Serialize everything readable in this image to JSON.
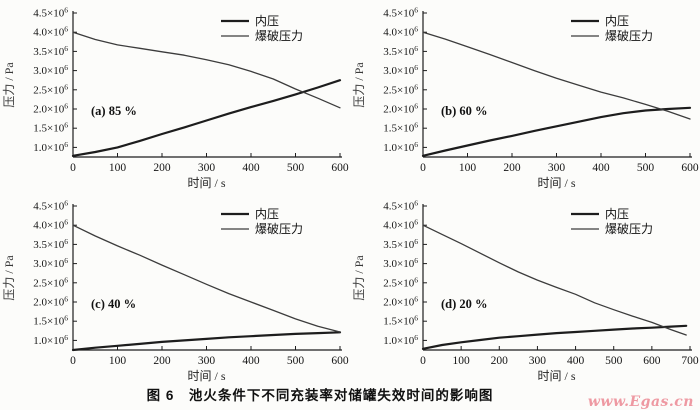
{
  "figure": {
    "caption": "图 6　池火条件下不同充装率对储罐失效时间的影响图",
    "watermark": "www.Egas.cn",
    "background": "#fcfcfa",
    "line_color": "#1d1d1d",
    "burst_line_color": "#3c3c3c",
    "watermark_color": "#ee99a2"
  },
  "chart_data": [
    {
      "type": "line",
      "panel_label": "(a) 85 %",
      "xlabel": "时间 / s",
      "ylabel": "压力 / Pa",
      "xlim": [
        0,
        600
      ],
      "ylim": [
        750000,
        4500000
      ],
      "x_ticks": [
        0,
        100,
        200,
        300,
        400,
        500,
        600
      ],
      "y_ticks": [
        1000000,
        1500000,
        2000000,
        2500000,
        3000000,
        3500000,
        4000000,
        4500000
      ],
      "grid": false,
      "legend_position": "top-right-inside",
      "series": [
        {
          "name": "内压",
          "stroke_width": 2.2,
          "x": [
            0,
            50,
            100,
            150,
            200,
            250,
            300,
            350,
            400,
            450,
            500,
            550,
            600
          ],
          "y": [
            780000,
            880000,
            1000000,
            1170000,
            1350000,
            1520000,
            1700000,
            1880000,
            2050000,
            2210000,
            2380000,
            2560000,
            2750000
          ]
        },
        {
          "name": "爆破压力",
          "stroke_width": 1.3,
          "x": [
            0,
            50,
            100,
            150,
            200,
            250,
            300,
            350,
            400,
            450,
            500,
            550,
            600
          ],
          "y": [
            4000000,
            3810000,
            3670000,
            3580000,
            3490000,
            3400000,
            3280000,
            3150000,
            2980000,
            2780000,
            2520000,
            2280000,
            2030000
          ]
        }
      ]
    },
    {
      "type": "line",
      "panel_label": "(b) 60 %",
      "xlabel": "时间 / s",
      "ylabel": "压力 / Pa",
      "xlim": [
        0,
        600
      ],
      "ylim": [
        750000,
        4500000
      ],
      "x_ticks": [
        0,
        100,
        200,
        300,
        400,
        500,
        600
      ],
      "y_ticks": [
        1000000,
        1500000,
        2000000,
        2500000,
        3000000,
        3500000,
        4000000,
        4500000
      ],
      "grid": false,
      "legend_position": "top-right-inside",
      "series": [
        {
          "name": "内压",
          "stroke_width": 2.2,
          "x": [
            0,
            50,
            100,
            150,
            200,
            250,
            300,
            350,
            400,
            450,
            500,
            550,
            600
          ],
          "y": [
            780000,
            920000,
            1050000,
            1180000,
            1300000,
            1430000,
            1550000,
            1670000,
            1790000,
            1890000,
            1960000,
            2000000,
            2030000
          ]
        },
        {
          "name": "爆破压力",
          "stroke_width": 1.3,
          "x": [
            0,
            50,
            100,
            150,
            200,
            250,
            300,
            350,
            400,
            450,
            500,
            550,
            600
          ],
          "y": [
            4000000,
            3820000,
            3620000,
            3420000,
            3210000,
            3000000,
            2800000,
            2620000,
            2440000,
            2290000,
            2120000,
            1940000,
            1740000
          ]
        }
      ]
    },
    {
      "type": "line",
      "panel_label": "(c) 40 %",
      "xlabel": "时间 / s",
      "ylabel": "压力 / Pa",
      "xlim": [
        0,
        600
      ],
      "ylim": [
        750000,
        4500000
      ],
      "x_ticks": [
        0,
        100,
        200,
        300,
        400,
        500,
        600
      ],
      "y_ticks": [
        1000000,
        1500000,
        2000000,
        2500000,
        3000000,
        3500000,
        4000000,
        4500000
      ],
      "grid": false,
      "legend_position": "top-right-inside",
      "series": [
        {
          "name": "内压",
          "stroke_width": 2.2,
          "x": [
            0,
            50,
            100,
            150,
            200,
            250,
            300,
            350,
            400,
            450,
            500,
            550,
            600
          ],
          "y": [
            750000,
            810000,
            860000,
            910000,
            960000,
            1000000,
            1040000,
            1080000,
            1110000,
            1140000,
            1170000,
            1190000,
            1210000
          ]
        },
        {
          "name": "爆破压力",
          "stroke_width": 1.3,
          "x": [
            0,
            50,
            100,
            150,
            200,
            250,
            300,
            350,
            400,
            450,
            500,
            550,
            600
          ],
          "y": [
            4000000,
            3720000,
            3460000,
            3220000,
            2960000,
            2710000,
            2460000,
            2220000,
            2000000,
            1780000,
            1560000,
            1370000,
            1220000
          ]
        }
      ]
    },
    {
      "type": "line",
      "panel_label": "(d) 20 %",
      "xlabel": "时间 / s",
      "ylabel": "压力 / Pa",
      "xlim": [
        0,
        700
      ],
      "ylim": [
        750000,
        4500000
      ],
      "x_ticks": [
        0,
        100,
        200,
        300,
        400,
        500,
        600,
        700
      ],
      "y_ticks": [
        1000000,
        1500000,
        2000000,
        2500000,
        3000000,
        3500000,
        4000000,
        4500000
      ],
      "grid": false,
      "legend_position": "top-right-inside",
      "series": [
        {
          "name": "内压",
          "stroke_width": 2.2,
          "x": [
            0,
            50,
            100,
            150,
            200,
            250,
            300,
            350,
            400,
            450,
            500,
            550,
            600,
            650,
            690
          ],
          "y": [
            780000,
            880000,
            950000,
            1010000,
            1070000,
            1110000,
            1150000,
            1190000,
            1220000,
            1250000,
            1280000,
            1310000,
            1330000,
            1360000,
            1380000
          ]
        },
        {
          "name": "爆破压力",
          "stroke_width": 1.3,
          "x": [
            0,
            50,
            100,
            150,
            200,
            250,
            300,
            350,
            400,
            450,
            500,
            550,
            600,
            650,
            690
          ],
          "y": [
            4000000,
            3760000,
            3520000,
            3270000,
            3020000,
            2780000,
            2570000,
            2380000,
            2200000,
            1980000,
            1800000,
            1630000,
            1470000,
            1280000,
            1140000
          ]
        }
      ]
    }
  ]
}
